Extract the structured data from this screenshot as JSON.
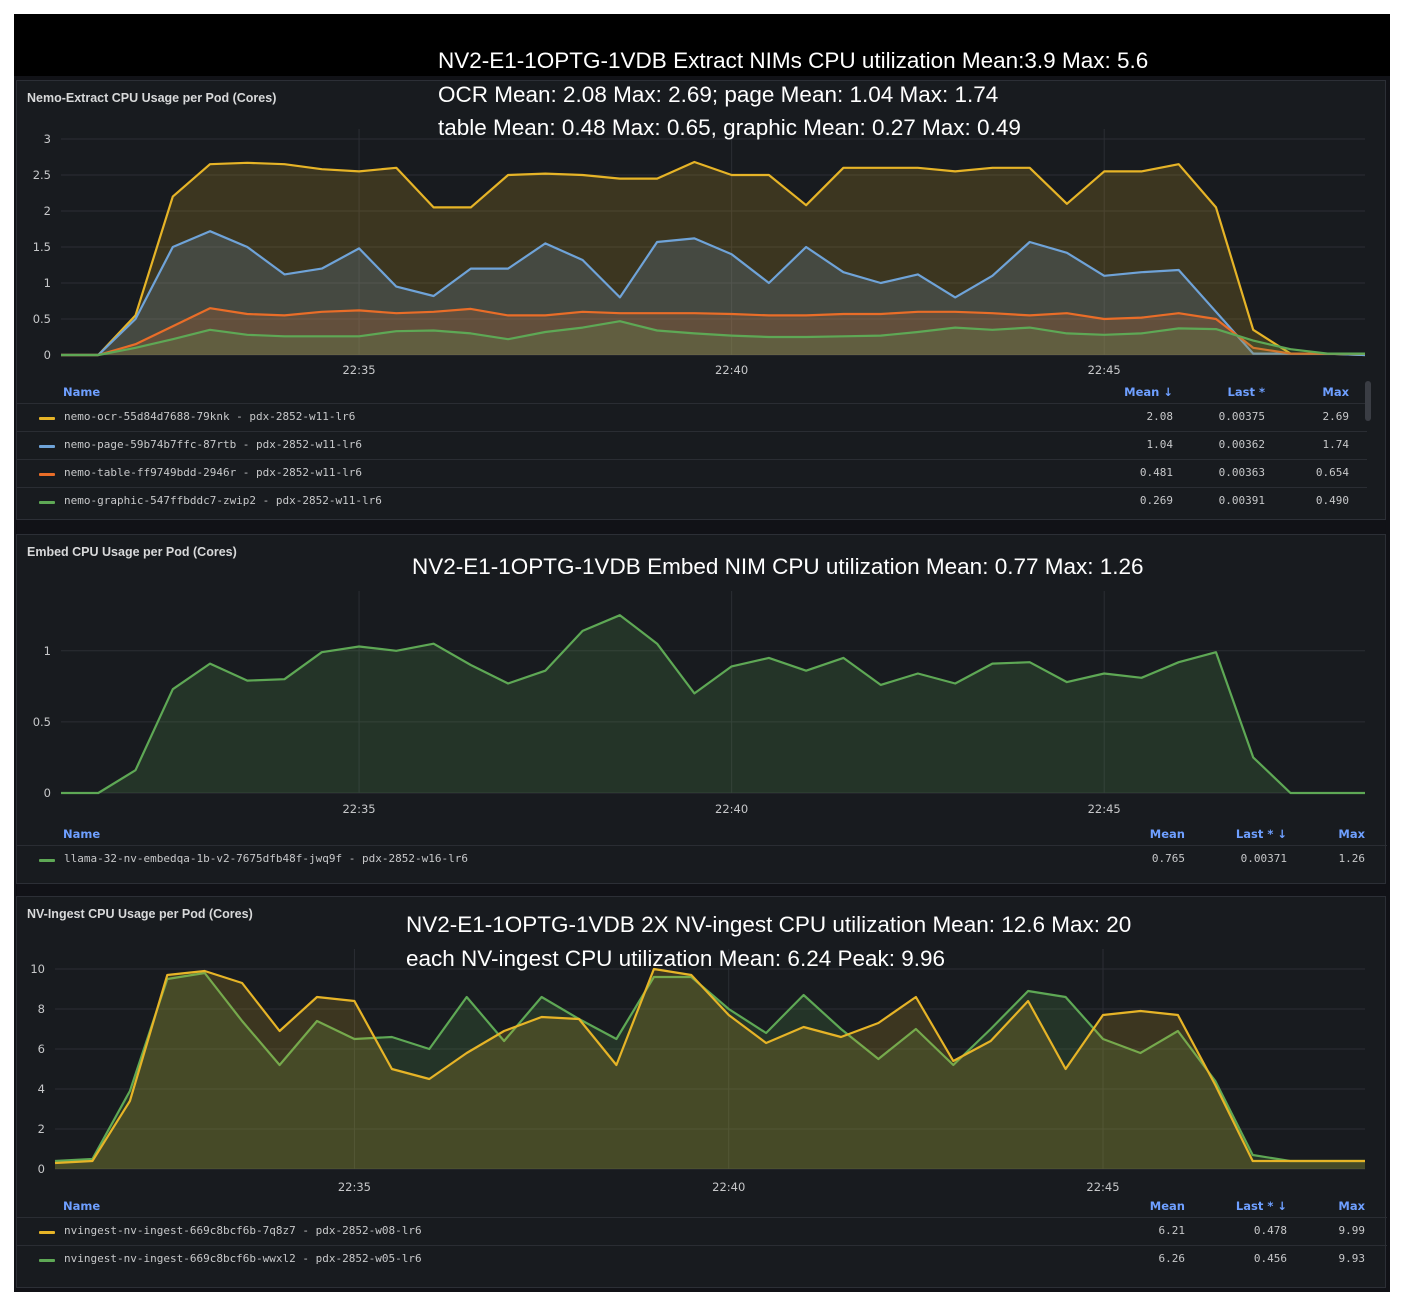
{
  "colors": {
    "yellow": "#e6b427",
    "blue": "#6fa3d8",
    "orange": "#e96d28",
    "green": "#5ea855",
    "headerBlue": "#6e9fff"
  },
  "panels": [
    {
      "title": "Nemo-Extract CPU Usage per Pod (Cores)",
      "annotations": [
        "NV2-E1-1OPTG-1VDB Extract NIMs CPU utilization Mean:3.9  Max: 5.6",
        "OCR Mean: 2.08 Max: 2.69;  page Mean: 1.04 Max: 1.74",
        "table Mean: 0.48 Max: 0.65, graphic Mean: 0.27 Max: 0.49"
      ],
      "legend_headers": {
        "name": "Name",
        "mean": "Mean ↓",
        "last": "Last *",
        "max": "Max"
      },
      "legend": [
        {
          "name": "nemo-ocr-55d84d7688-79knk - pdx-2852-w11-lr6",
          "mean": "2.08",
          "last": "0.00375",
          "max": "2.69",
          "color": "#e6b427"
        },
        {
          "name": "nemo-page-59b74b7ffc-87rtb - pdx-2852-w11-lr6",
          "mean": "1.04",
          "last": "0.00362",
          "max": "1.74",
          "color": "#6fa3d8"
        },
        {
          "name": "nemo-table-ff9749bdd-2946r - pdx-2852-w11-lr6",
          "mean": "0.481",
          "last": "0.00363",
          "max": "0.654",
          "color": "#e96d28"
        },
        {
          "name": "nemo-graphic-547ffbddc7-zwip2 - pdx-2852-w11-lr6",
          "mean": "0.269",
          "last": "0.00391",
          "max": "0.490",
          "color": "#5ea855"
        }
      ]
    },
    {
      "title": "Embed CPU Usage per Pod (Cores)",
      "annotations": [
        "NV2-E1-1OPTG-1VDB Embed NIM CPU utilization Mean: 0.77  Max: 1.26"
      ],
      "legend_headers": {
        "name": "Name",
        "mean": "Mean",
        "last": "Last * ↓",
        "max": "Max"
      },
      "legend": [
        {
          "name": "llama-32-nv-embedqa-1b-v2-7675dfb48f-jwq9f - pdx-2852-w16-lr6",
          "mean": "0.765",
          "last": "0.00371",
          "max": "1.26",
          "color": "#5ea855"
        }
      ]
    },
    {
      "title": "NV-Ingest CPU Usage per Pod (Cores)",
      "annotations": [
        "NV2-E1-1OPTG-1VDB 2X NV-ingest CPU utilization Mean: 12.6  Max: 20",
        "each NV-ingest CPU utilization  Mean: 6.24 Peak: 9.96"
      ],
      "legend_headers": {
        "name": "Name",
        "mean": "Mean",
        "last": "Last * ↓",
        "max": "Max"
      },
      "legend": [
        {
          "name": "nvingest-nv-ingest-669c8bcf6b-7q8z7 - pdx-2852-w08-lr6",
          "mean": "6.21",
          "last": "0.478",
          "max": "9.99",
          "color": "#e6b427"
        },
        {
          "name": "nvingest-nv-ingest-669c8bcf6b-wwxl2 - pdx-2852-w05-lr6",
          "mean": "6.26",
          "last": "0.456",
          "max": "9.93",
          "color": "#5ea855"
        }
      ]
    }
  ],
  "chart_data": [
    {
      "type": "area",
      "title": "Nemo-Extract CPU Usage per Pod (Cores)",
      "x": [
        "22:31",
        "22:31.5",
        "22:32",
        "22:32.5",
        "22:33",
        "22:33.5",
        "22:34",
        "22:34.5",
        "22:35",
        "22:35.5",
        "22:36",
        "22:36.5",
        "22:37",
        "22:37.5",
        "22:38",
        "22:38.5",
        "22:39",
        "22:39.5",
        "22:40",
        "22:40.5",
        "22:41",
        "22:41.5",
        "22:42",
        "22:42.5",
        "22:43",
        "22:43.5",
        "22:44",
        "22:44.5",
        "22:45",
        "22:45.5",
        "22:46",
        "22:46.5",
        "22:47",
        "22:47.5",
        "22:48",
        "22:48.5"
      ],
      "xticks": [
        "22:35",
        "22:40",
        "22:45"
      ],
      "xtick_index": [
        8,
        18,
        28
      ],
      "ylim": [
        0,
        3
      ],
      "yticks": [
        0,
        0.5,
        1,
        1.5,
        2,
        2.5,
        3
      ],
      "grid": true,
      "series": [
        {
          "name": "nemo-ocr-55d84d7688-79knk - pdx-2852-w11-lr6",
          "color": "#e6b427",
          "values": [
            0,
            0,
            0.55,
            2.2,
            2.65,
            2.67,
            2.65,
            2.58,
            2.55,
            2.6,
            2.05,
            2.05,
            2.5,
            2.52,
            2.5,
            2.45,
            2.45,
            2.68,
            2.5,
            2.5,
            2.08,
            2.6,
            2.6,
            2.6,
            2.55,
            2.6,
            2.6,
            2.1,
            2.55,
            2.55,
            2.65,
            2.05,
            0.35,
            0.02,
            0.02,
            0
          ]
        },
        {
          "name": "nemo-page-59b74b7ffc-87rtb - pdx-2852-w11-lr6",
          "color": "#6fa3d8",
          "values": [
            0,
            0,
            0.5,
            1.5,
            1.72,
            1.5,
            1.12,
            1.2,
            1.48,
            0.95,
            0.82,
            1.2,
            1.2,
            1.55,
            1.32,
            0.8,
            1.57,
            1.62,
            1.4,
            1.0,
            1.5,
            1.15,
            1.0,
            1.12,
            0.8,
            1.1,
            1.57,
            1.42,
            1.1,
            1.15,
            1.18,
            0.6,
            0.02,
            0.02,
            0.02,
            0
          ]
        },
        {
          "name": "nemo-table-ff9749bdd-2946r - pdx-2852-w11-lr6",
          "color": "#e96d28",
          "values": [
            0,
            0,
            0.15,
            0.4,
            0.65,
            0.57,
            0.55,
            0.6,
            0.62,
            0.58,
            0.6,
            0.64,
            0.55,
            0.55,
            0.6,
            0.58,
            0.58,
            0.58,
            0.57,
            0.55,
            0.55,
            0.57,
            0.57,
            0.6,
            0.6,
            0.58,
            0.55,
            0.58,
            0.5,
            0.52,
            0.58,
            0.5,
            0.1,
            0.02,
            0.02,
            0.02
          ]
        },
        {
          "name": "nemo-graphic-547ffbddc7-zwip2 - pdx-2852-w11-lr6",
          "color": "#5ea855",
          "values": [
            0,
            0,
            0.1,
            0.22,
            0.35,
            0.28,
            0.26,
            0.26,
            0.26,
            0.33,
            0.34,
            0.3,
            0.22,
            0.32,
            0.38,
            0.47,
            0.34,
            0.3,
            0.27,
            0.25,
            0.25,
            0.26,
            0.27,
            0.32,
            0.38,
            0.35,
            0.38,
            0.3,
            0.28,
            0.3,
            0.37,
            0.36,
            0.2,
            0.08,
            0.02,
            0.02
          ]
        }
      ]
    },
    {
      "type": "area",
      "title": "Embed CPU Usage per Pod (Cores)",
      "x": [
        "22:31",
        "22:31.5",
        "22:32",
        "22:32.5",
        "22:33",
        "22:33.5",
        "22:34",
        "22:34.5",
        "22:35",
        "22:35.5",
        "22:36",
        "22:36.5",
        "22:37",
        "22:37.5",
        "22:38",
        "22:38.5",
        "22:39",
        "22:39.5",
        "22:40",
        "22:40.5",
        "22:41",
        "22:41.5",
        "22:42",
        "22:42.5",
        "22:43",
        "22:43.5",
        "22:44",
        "22:44.5",
        "22:45",
        "22:45.5",
        "22:46",
        "22:46.5",
        "22:47",
        "22:47.5",
        "22:48",
        "22:48.5"
      ],
      "xticks": [
        "22:35",
        "22:40",
        "22:45"
      ],
      "xtick_index": [
        8,
        18,
        28
      ],
      "ylim": [
        0,
        1.35
      ],
      "yticks": [
        0,
        0.5,
        1
      ],
      "grid": true,
      "series": [
        {
          "name": "llama-32-nv-embedqa-1b-v2-7675dfb48f-jwq9f - pdx-2852-w16-lr6",
          "color": "#5ea855",
          "values": [
            0,
            0,
            0.16,
            0.73,
            0.91,
            0.79,
            0.8,
            0.99,
            1.03,
            1.0,
            1.05,
            0.9,
            0.77,
            0.86,
            1.14,
            1.25,
            1.05,
            0.7,
            0.89,
            0.95,
            0.86,
            0.95,
            0.76,
            0.84,
            0.77,
            0.91,
            0.92,
            0.78,
            0.84,
            0.81,
            0.92,
            0.99,
            0.25,
            0,
            0,
            0
          ]
        }
      ]
    },
    {
      "type": "area",
      "title": "NV-Ingest CPU Usage per Pod (Cores)",
      "x": [
        "22:31",
        "22:31.5",
        "22:32",
        "22:32.5",
        "22:33",
        "22:33.5",
        "22:34",
        "22:34.5",
        "22:35",
        "22:35.5",
        "22:36",
        "22:36.5",
        "22:37",
        "22:37.5",
        "22:38",
        "22:38.5",
        "22:39",
        "22:39.5",
        "22:40",
        "22:40.5",
        "22:41",
        "22:41.5",
        "22:42",
        "22:42.5",
        "22:43",
        "22:43.5",
        "22:44",
        "22:44.5",
        "22:45",
        "22:45.5",
        "22:46",
        "22:46.5",
        "22:47",
        "22:47.5",
        "22:48",
        "22:48.5"
      ],
      "xticks": [
        "22:35",
        "22:40",
        "22:45"
      ],
      "xtick_index": [
        8,
        18,
        28
      ],
      "ylim": [
        0,
        10.5
      ],
      "yticks": [
        0,
        2,
        4,
        6,
        8,
        10
      ],
      "grid": true,
      "series": [
        {
          "name": "nvingest-nv-ingest-669c8bcf6b-wwxl2 - pdx-2852-w05-lr6",
          "color": "#5ea855",
          "values": [
            0.4,
            0.5,
            3.9,
            9.5,
            9.8,
            7.4,
            5.2,
            7.4,
            6.5,
            6.6,
            6.0,
            8.6,
            6.4,
            8.6,
            7.5,
            6.5,
            9.6,
            9.6,
            8.0,
            6.8,
            8.7,
            7.0,
            5.5,
            7.0,
            5.2,
            7.0,
            8.9,
            8.6,
            6.5,
            5.8,
            6.9,
            4.4,
            0.7,
            0.4,
            0.4,
            0.4
          ]
        },
        {
          "name": "nvingest-nv-ingest-669c8bcf6b-7q8z7 - pdx-2852-w08-lr6",
          "color": "#e6b427",
          "values": [
            0.3,
            0.4,
            3.4,
            9.7,
            9.9,
            9.3,
            6.9,
            8.6,
            8.4,
            5.0,
            4.5,
            5.8,
            6.9,
            7.6,
            7.5,
            5.2,
            10.0,
            9.7,
            7.7,
            6.3,
            7.1,
            6.6,
            7.3,
            8.6,
            5.4,
            6.4,
            8.4,
            5.0,
            7.7,
            7.9,
            7.7,
            4.2,
            0.4,
            0.4,
            0.4,
            0.4
          ]
        }
      ]
    }
  ]
}
